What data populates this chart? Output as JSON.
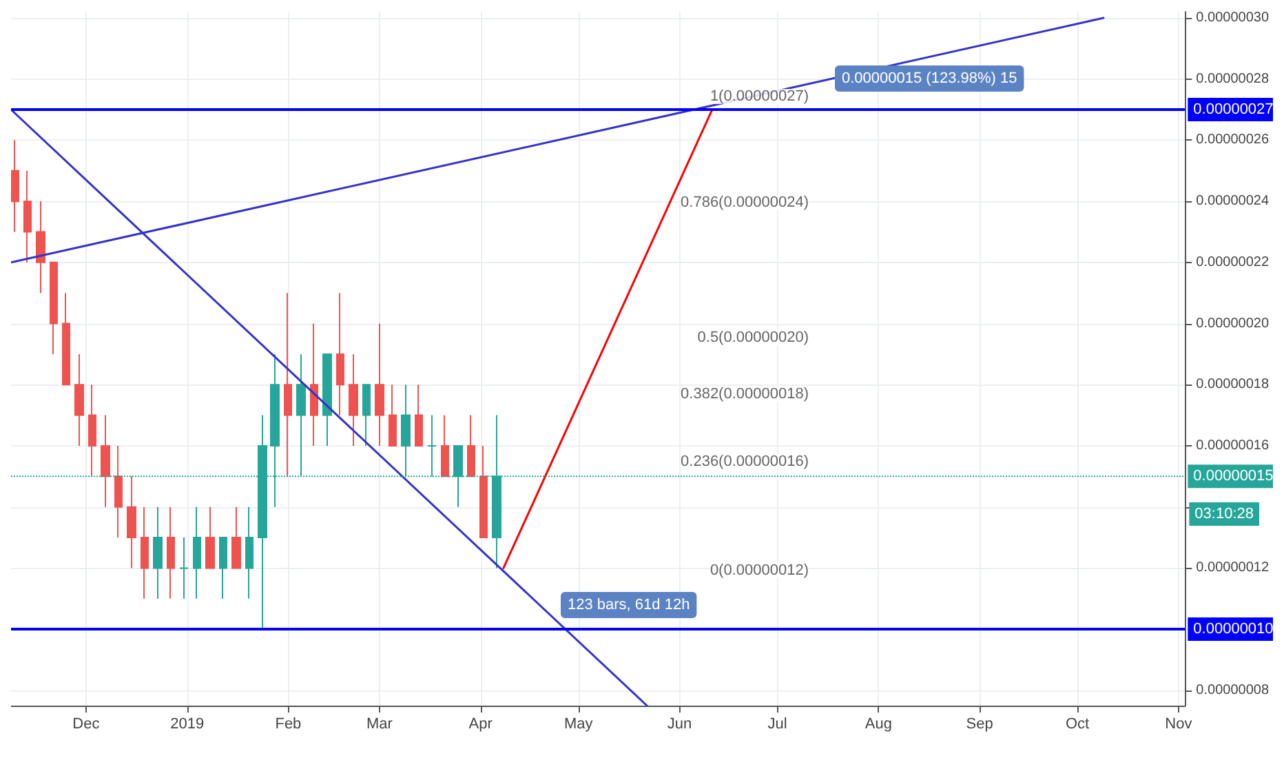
{
  "chart_data": {
    "type": "candlestick",
    "x": [
      "2018-11-09",
      "2018-11-13",
      "2018-11-17",
      "2018-11-21",
      "2018-11-25",
      "2018-11-29",
      "2018-12-03",
      "2018-12-07",
      "2018-12-11",
      "2018-12-15",
      "2018-12-19",
      "2018-12-23",
      "2018-12-27",
      "2018-12-31",
      "2019-01-04",
      "2019-01-08",
      "2019-01-12",
      "2019-01-16",
      "2019-01-20",
      "2019-01-24",
      "2019-01-28",
      "2019-02-01",
      "2019-02-05",
      "2019-02-09",
      "2019-02-13",
      "2019-02-17",
      "2019-02-21",
      "2019-02-25",
      "2019-03-01",
      "2019-03-05",
      "2019-03-09",
      "2019-03-13",
      "2019-03-17",
      "2019-03-21",
      "2019-03-25",
      "2019-03-29",
      "2019-04-02",
      "2019-04-06"
    ],
    "ohlc": [
      [
        2.5e-07,
        2.6e-07,
        2.3e-07,
        2.4e-07
      ],
      [
        2.4e-07,
        2.5e-07,
        2.2e-07,
        2.3e-07
      ],
      [
        2.3e-07,
        2.4e-07,
        2.1e-07,
        2.2e-07
      ],
      [
        2.2e-07,
        2.2e-07,
        1.9e-07,
        2e-07
      ],
      [
        2e-07,
        2.1e-07,
        1.8e-07,
        1.8e-07
      ],
      [
        1.8e-07,
        1.9e-07,
        1.6e-07,
        1.7e-07
      ],
      [
        1.7e-07,
        1.8e-07,
        1.5e-07,
        1.6e-07
      ],
      [
        1.6e-07,
        1.7e-07,
        1.4e-07,
        1.5e-07
      ],
      [
        1.5e-07,
        1.6e-07,
        1.3e-07,
        1.4e-07
      ],
      [
        1.4e-07,
        1.5e-07,
        1.2e-07,
        1.3e-07
      ],
      [
        1.3e-07,
        1.4e-07,
        1.1e-07,
        1.2e-07
      ],
      [
        1.2e-07,
        1.4e-07,
        1.1e-07,
        1.3e-07
      ],
      [
        1.3e-07,
        1.4e-07,
        1.1e-07,
        1.2e-07
      ],
      [
        1.2e-07,
        1.3e-07,
        1.1e-07,
        1.2e-07
      ],
      [
        1.2e-07,
        1.4e-07,
        1.1e-07,
        1.3e-07
      ],
      [
        1.3e-07,
        1.4e-07,
        1.2e-07,
        1.2e-07
      ],
      [
        1.2e-07,
        1.3e-07,
        1.1e-07,
        1.3e-07
      ],
      [
        1.3e-07,
        1.4e-07,
        1.2e-07,
        1.2e-07
      ],
      [
        1.2e-07,
        1.4e-07,
        1.1e-07,
        1.3e-07
      ],
      [
        1.3e-07,
        1.7e-07,
        1e-07,
        1.6e-07
      ],
      [
        1.6e-07,
        1.9e-07,
        1.4e-07,
        1.8e-07
      ],
      [
        1.8e-07,
        2.1e-07,
        1.5e-07,
        1.7e-07
      ],
      [
        1.7e-07,
        1.9e-07,
        1.5e-07,
        1.8e-07
      ],
      [
        1.8e-07,
        2e-07,
        1.6e-07,
        1.7e-07
      ],
      [
        1.7e-07,
        1.9e-07,
        1.6e-07,
        1.9e-07
      ],
      [
        1.9e-07,
        2.1e-07,
        1.7e-07,
        1.8e-07
      ],
      [
        1.8e-07,
        1.9e-07,
        1.6e-07,
        1.7e-07
      ],
      [
        1.7e-07,
        1.8e-07,
        1.6e-07,
        1.8e-07
      ],
      [
        1.8e-07,
        2e-07,
        1.6e-07,
        1.7e-07
      ],
      [
        1.7e-07,
        1.8e-07,
        1.6e-07,
        1.6e-07
      ],
      [
        1.6e-07,
        1.8e-07,
        1.5e-07,
        1.7e-07
      ],
      [
        1.7e-07,
        1.8e-07,
        1.6e-07,
        1.6e-07
      ],
      [
        1.6e-07,
        1.7e-07,
        1.5e-07,
        1.6e-07
      ],
      [
        1.6e-07,
        1.7e-07,
        1.5e-07,
        1.5e-07
      ],
      [
        1.5e-07,
        1.6e-07,
        1.4e-07,
        1.6e-07
      ],
      [
        1.6e-07,
        1.7e-07,
        1.5e-07,
        1.5e-07
      ],
      [
        1.5e-07,
        1.6e-07,
        1.3e-07,
        1.3e-07
      ],
      [
        1.3e-07,
        1.7e-07,
        1.2e-07,
        1.5e-07
      ]
    ],
    "series": [
      {
        "type": "line",
        "color": "#3333cc",
        "x": [
          "2018-11-08",
          "2019-05-22"
        ],
        "values": [
          2.7e-07,
          7.5e-08
        ]
      },
      {
        "type": "line",
        "color": "#3333cc",
        "x": [
          "2018-11-08",
          "2019-10-09"
        ],
        "values": [
          2.2e-07,
          3e-07
        ]
      },
      {
        "type": "line",
        "color": "#ff0000",
        "x": [
          "2019-04-08",
          "2019-06-11"
        ],
        "values": [
          1.2e-07,
          2.7e-07
        ]
      }
    ],
    "xlim": [
      "2018-11-08",
      "2019-11-03"
    ],
    "xticks": [
      {
        "value": "2018-12-01",
        "label": "Dec"
      },
      {
        "value": "2019-01-01",
        "label": "2019"
      },
      {
        "value": "2019-02-01",
        "label": "Feb"
      },
      {
        "value": "2019-03-01",
        "label": "Mar"
      },
      {
        "value": "2019-04-01",
        "label": "Apr"
      },
      {
        "value": "2019-05-01",
        "label": "May"
      },
      {
        "value": "2019-06-01",
        "label": "Jun"
      },
      {
        "value": "2019-07-01",
        "label": "Jul"
      },
      {
        "value": "2019-08-01",
        "label": "Aug"
      },
      {
        "value": "2019-09-01",
        "label": "Sep"
      },
      {
        "value": "2019-10-01",
        "label": "Oct"
      },
      {
        "value": "2019-11-01",
        "label": "Nov"
      }
    ],
    "ylim": [
      7.5e-08,
      3.02e-07
    ],
    "yticks": [
      {
        "value": 8e-08,
        "label": "0.00000008"
      },
      {
        "value": 1.2e-07,
        "label": "0.00000012"
      },
      {
        "value": 1.4e-07,
        "label": null
      },
      {
        "value": 1.6e-07,
        "label": "0.00000016"
      },
      {
        "value": 1.8e-07,
        "label": "0.00000018"
      },
      {
        "value": 2e-07,
        "label": "0.00000020"
      },
      {
        "value": 2.2e-07,
        "label": "0.00000022"
      },
      {
        "value": 2.4e-07,
        "label": "0.00000024"
      },
      {
        "value": 2.6e-07,
        "label": "0.00000026"
      },
      {
        "value": 2.8e-07,
        "label": "0.00000028"
      },
      {
        "value": 3e-07,
        "label": "0.00000030"
      }
    ],
    "ref_lines": [
      {
        "axis": "y",
        "value": 2.7e-07,
        "label": "0.00000027",
        "color": "#0000ff",
        "line_style": "solid"
      },
      {
        "axis": "y",
        "value": 1e-07,
        "label": "0.00000010",
        "color": "#0000ff",
        "line_style": "solid"
      },
      {
        "axis": "y",
        "value": 1.5e-07,
        "label": "0.00000015",
        "color": "#26a69a",
        "line_style": "dotted"
      }
    ],
    "annotations": [
      "1(0.00000027)",
      "0.786(0.00000024)",
      "0.5(0.00000020)",
      "0.382(0.00000018)",
      "0.236(0.00000016)",
      "0(0.00000012)",
      "0.00000015 (123.98%) 15",
      "123 bars, 61d 12h",
      "03:10:28"
    ],
    "grid": true,
    "marker": "none"
  }
}
